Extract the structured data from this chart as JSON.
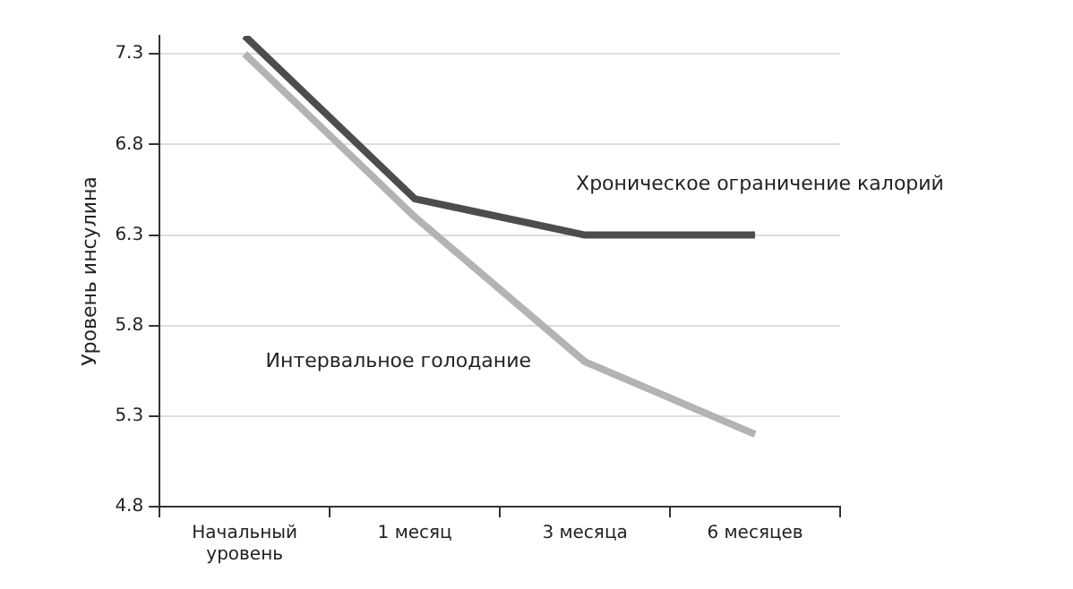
{
  "chart_data": {
    "type": "line",
    "ylabel": "Уровень инсулина",
    "categories": [
      "Начальный уровень",
      "1 месяц",
      "3 месяца",
      "6 месяцев"
    ],
    "series": [
      {
        "name": "Хроническое ограничение калорий",
        "color": "#4d4d4d",
        "values": [
          7.4,
          6.5,
          6.3,
          6.3
        ]
      },
      {
        "name": "Интервальное голодание",
        "color": "#b3b3b3",
        "values": [
          7.3,
          6.4,
          5.6,
          5.2
        ]
      }
    ],
    "ylim": [
      4.8,
      7.4
    ],
    "yticks": [
      4.8,
      5.3,
      5.8,
      6.3,
      6.8,
      7.3
    ],
    "grid": "y",
    "legend": false,
    "marker": "none",
    "line_style": "solid"
  }
}
